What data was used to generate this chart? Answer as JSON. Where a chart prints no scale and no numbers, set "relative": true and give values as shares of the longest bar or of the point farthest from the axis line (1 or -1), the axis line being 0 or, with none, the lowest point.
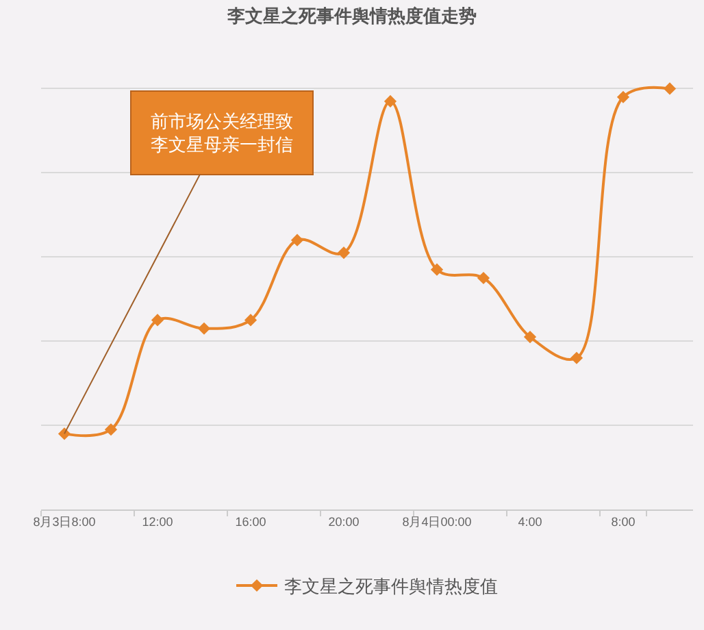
{
  "chart_data": {
    "type": "line",
    "title": "李文星之死事件舆情热度值走势",
    "categories": [
      "8月3日8:00",
      null,
      "12:00",
      null,
      "16:00",
      null,
      "20:00",
      null,
      "8月4日00:00",
      null,
      "4:00",
      null,
      "8:00",
      null
    ],
    "series": [
      {
        "name": "李文星之死事件舆情热度值",
        "color": "#e8852a",
        "values": [
          0.18,
          0.19,
          0.45,
          0.43,
          0.45,
          0.64,
          0.61,
          0.97,
          0.57,
          0.55,
          0.41,
          0.36,
          0.98,
          1.0
        ]
      }
    ],
    "relative": true,
    "grid": "y",
    "legend": "bottom",
    "marker": "diamond",
    "line_style": "solid",
    "annotations": [
      {
        "text": "前市场公关经理致李文星母亲一封信",
        "x": "8月3日8:00",
        "y": 0.18
      }
    ]
  }
}
